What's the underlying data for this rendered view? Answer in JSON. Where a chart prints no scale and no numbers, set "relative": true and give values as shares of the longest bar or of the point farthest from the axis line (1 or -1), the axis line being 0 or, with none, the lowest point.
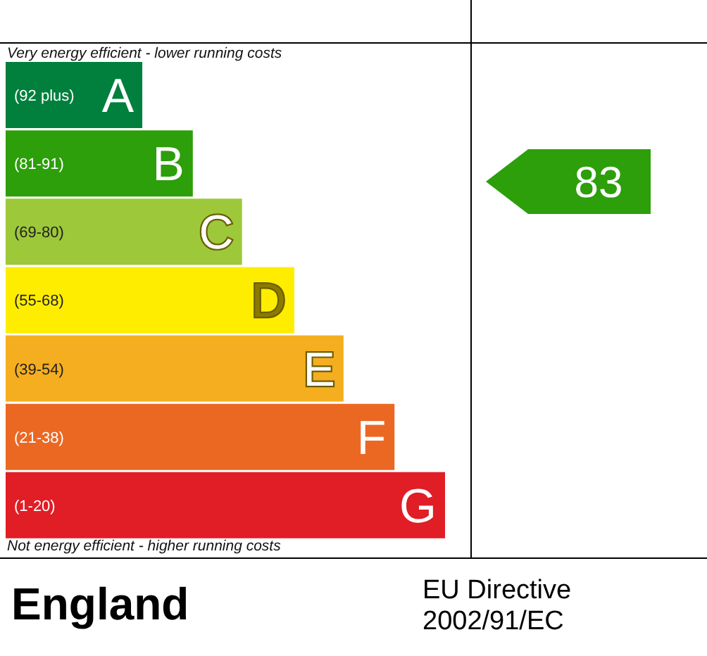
{
  "chart_data": {
    "type": "bar",
    "orientation": "horizontal",
    "relative": true,
    "categories": [
      "(92 plus)",
      "(81-91)",
      "(69-80)",
      "(55-68)",
      "(39-54)",
      "(21-38)",
      "(1-20)"
    ],
    "values": [
      0.311,
      0.426,
      0.538,
      0.657,
      0.769,
      0.885,
      1
    ],
    "colors": [
      "#007f3d",
      "#2c9f0a",
      "#9dc83a",
      "#ffed00",
      "#f5ae1f",
      "#eb6823",
      "#e11d25"
    ],
    "annotations": [
      "Very energy efficient - lower running costs",
      "Not energy efficient - higher running costs",
      "England",
      "EU Directive 2002/91/EC",
      "83",
      {
        "text": "A",
        "x": 0.311,
        "y": "(92 plus)"
      },
      {
        "text": "B",
        "x": 0.426,
        "y": "(81-91)"
      },
      {
        "text": "C",
        "x": 0.538,
        "y": "(69-80)"
      },
      {
        "text": "D",
        "x": 0.657,
        "y": "(55-68)"
      },
      {
        "text": "E",
        "x": 0.769,
        "y": "(39-54)"
      },
      {
        "text": "F",
        "x": 0.885,
        "y": "(21-38)"
      },
      {
        "text": "G",
        "x": 1,
        "y": "(1-20)"
      }
    ]
  }
}
